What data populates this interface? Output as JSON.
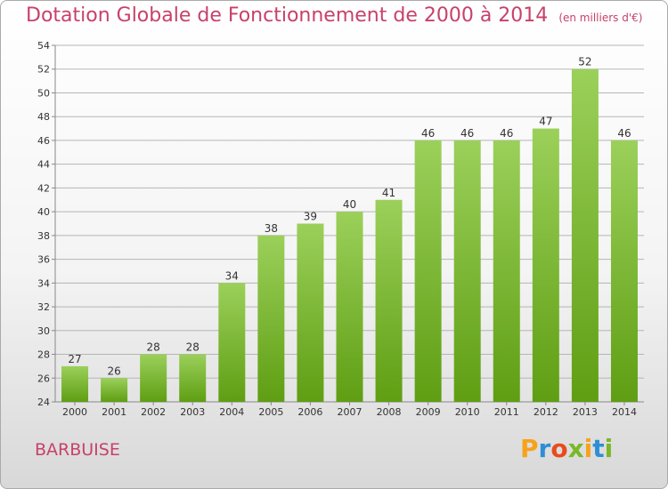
{
  "header": {
    "title": "Dotation Globale de Fonctionnement de 2000 à 2014",
    "subtitle": "(en milliers d'€)"
  },
  "footer": {
    "commune": "BARBUISE",
    "logo_text": "Proxiti",
    "logo_colors": [
      "#f7a21b",
      "#2c8fd6",
      "#e84c1c",
      "#7ab828",
      "#f7a21b",
      "#2c8fd6",
      "#7ab828"
    ]
  },
  "colors": {
    "bar_top": "#9bd05a",
    "bar_bottom": "#5f9e13",
    "grid": "#b5b5b5",
    "title": "#c8416a"
  },
  "chart_data": {
    "type": "bar",
    "categories": [
      "2000",
      "2001",
      "2002",
      "2003",
      "2004",
      "2005",
      "2006",
      "2007",
      "2008",
      "2009",
      "2010",
      "2011",
      "2012",
      "2013",
      "2014"
    ],
    "values": [
      27,
      26,
      28,
      28,
      34,
      38,
      39,
      40,
      41,
      46,
      46,
      46,
      47,
      52,
      46
    ],
    "ylim": [
      24,
      54
    ],
    "yticks": [
      24,
      26,
      28,
      30,
      32,
      34,
      36,
      38,
      40,
      42,
      44,
      46,
      48,
      50,
      52,
      54
    ],
    "grid": true,
    "data_labels": true
  }
}
